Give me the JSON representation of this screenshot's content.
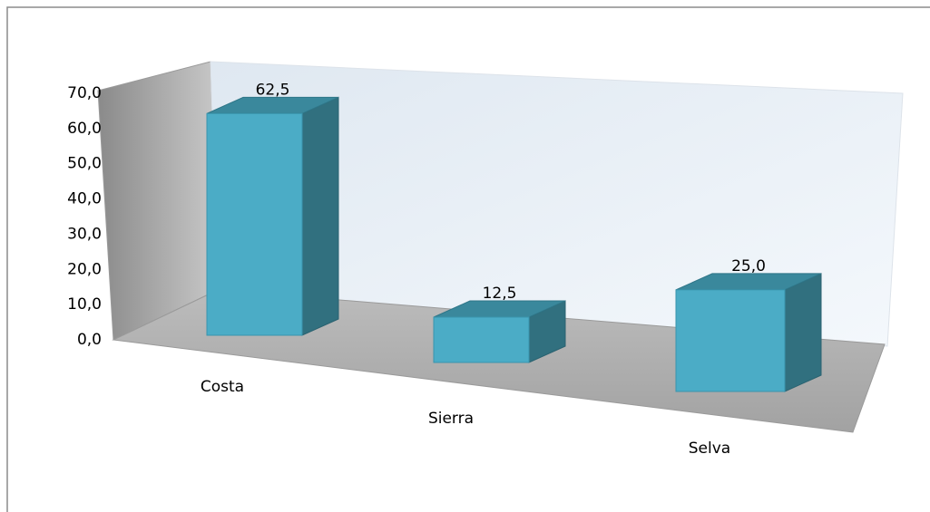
{
  "chart_data": {
    "type": "bar3d",
    "categories": [
      "Costa",
      "Sierra",
      "Selva"
    ],
    "values": [
      62.5,
      12.5,
      25.0
    ],
    "value_labels": [
      "62,5",
      "12,5",
      "25,0"
    ],
    "color": "#4bacc6",
    "ylim": [
      0,
      70
    ],
    "yticks": [
      {
        "value": 0,
        "label": "0,0"
      },
      {
        "value": 10,
        "label": "10,0"
      },
      {
        "value": 20,
        "label": "20,0"
      },
      {
        "value": 30,
        "label": "30,0"
      },
      {
        "value": 40,
        "label": "40,0"
      },
      {
        "value": 50,
        "label": "50,0"
      },
      {
        "value": 60,
        "label": "60,0"
      },
      {
        "value": 70,
        "label": "70,0"
      }
    ]
  }
}
